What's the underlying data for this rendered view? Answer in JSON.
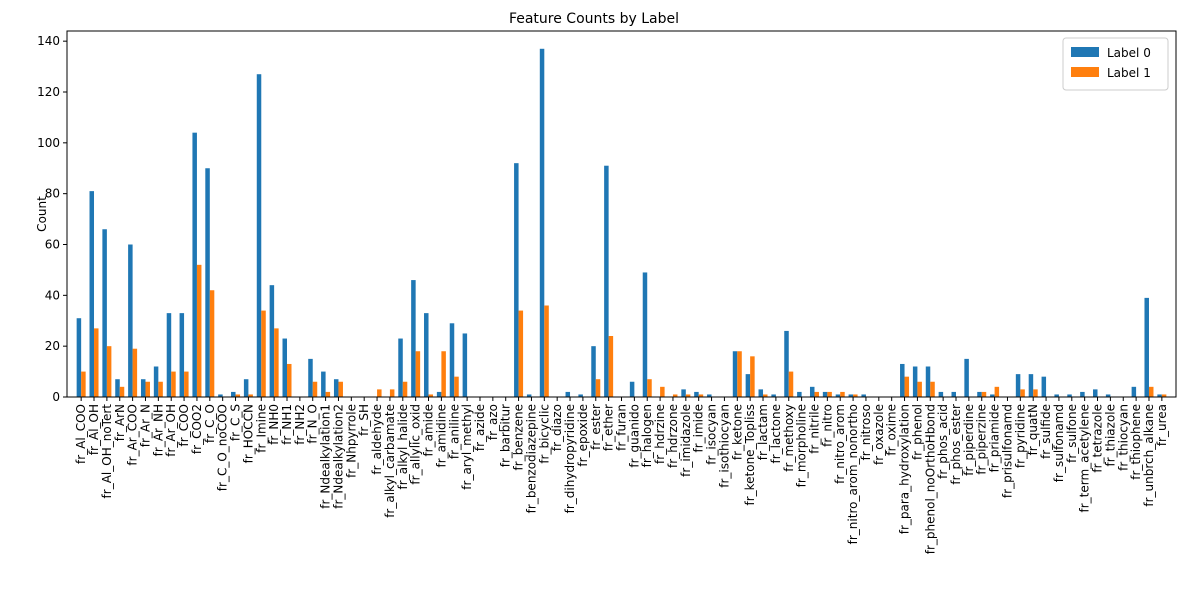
{
  "chart_data": {
    "type": "bar",
    "title": "Feature Counts by Label",
    "xlabel": "",
    "ylabel": "Count",
    "ylim": [
      0,
      144
    ],
    "yticks": [
      0,
      20,
      40,
      60,
      80,
      100,
      120,
      140
    ],
    "grid": false,
    "legend_position": "top-right",
    "categories": [
      "fr_Al_COO",
      "fr_Al_OH",
      "fr_Al_OH_noTert",
      "fr_ArN",
      "fr_Ar_COO",
      "fr_Ar_N",
      "fr_Ar_NH",
      "fr_Ar_OH",
      "fr_COO",
      "fr_COO2",
      "fr_C_O",
      "fr_C_O_noCOO",
      "fr_C_S",
      "fr_HOCCN",
      "fr_Imine",
      "fr_NH0",
      "fr_NH1",
      "fr_NH2",
      "fr_N_O",
      "fr_Ndealkylation1",
      "fr_Ndealkylation2",
      "fr_Nhpyrrole",
      "fr_SH",
      "fr_aldehyde",
      "fr_alkyl_carbamate",
      "fr_alkyl_halide",
      "fr_allylic_oxid",
      "fr_amide",
      "fr_amidine",
      "fr_aniline",
      "fr_aryl_methyl",
      "fr_azide",
      "fr_azo",
      "fr_barbitur",
      "fr_benzene",
      "fr_benzodiazepine",
      "fr_bicyclic",
      "fr_diazo",
      "fr_dihydropyridine",
      "fr_epoxide",
      "fr_ester",
      "fr_ether",
      "fr_furan",
      "fr_guanido",
      "fr_halogen",
      "fr_hdrzine",
      "fr_hdrzone",
      "fr_imidazole",
      "fr_imide",
      "fr_isocyan",
      "fr_isothiocyan",
      "fr_ketone",
      "fr_ketone_Topliss",
      "fr_lactam",
      "fr_lactone",
      "fr_methoxy",
      "fr_morpholine",
      "fr_nitrile",
      "fr_nitro",
      "fr_nitro_arom",
      "fr_nitro_arom_nonortho",
      "fr_nitroso",
      "fr_oxazole",
      "fr_oxime",
      "fr_para_hydroxylation",
      "fr_phenol",
      "fr_phenol_noOrthoHbond",
      "fr_phos_acid",
      "fr_phos_ester",
      "fr_piperdine",
      "fr_piperzine",
      "fr_priamide",
      "fr_prisulfonamd",
      "fr_pyridine",
      "fr_quatN",
      "fr_sulfide",
      "fr_sulfonamd",
      "fr_sulfone",
      "fr_term_acetylene",
      "fr_tetrazole",
      "fr_thiazole",
      "fr_thiocyan",
      "fr_thiophene",
      "fr_unbrch_alkane",
      "fr_urea"
    ],
    "series": [
      {
        "name": "Label 0",
        "color": "#1f77b4",
        "values": [
          31,
          81,
          66,
          7,
          60,
          7,
          12,
          33,
          33,
          104,
          90,
          1,
          2,
          7,
          127,
          44,
          23,
          0,
          15,
          10,
          7,
          0,
          0,
          0,
          0,
          23,
          46,
          33,
          2,
          29,
          25,
          0,
          0,
          0,
          92,
          1,
          137,
          0,
          2,
          1,
          20,
          91,
          0,
          6,
          49,
          0,
          0,
          3,
          2,
          1,
          0,
          18,
          9,
          3,
          1,
          26,
          2,
          4,
          2,
          1,
          1,
          1,
          0,
          0,
          13,
          12,
          12,
          2,
          2,
          15,
          2,
          1,
          0,
          9,
          9,
          8,
          1,
          1,
          2,
          3,
          1,
          0,
          4,
          39,
          1
        ]
      },
      {
        "name": "Label 1",
        "color": "#ff7f0e",
        "values": [
          10,
          27,
          20,
          4,
          19,
          6,
          6,
          10,
          10,
          52,
          42,
          0,
          1,
          1,
          34,
          27,
          13,
          0,
          6,
          2,
          6,
          0,
          0,
          3,
          3,
          6,
          18,
          1,
          18,
          8,
          0,
          0,
          0,
          0,
          34,
          0,
          36,
          0,
          0,
          0,
          7,
          24,
          0,
          0,
          7,
          4,
          1,
          1,
          1,
          0,
          0,
          18,
          16,
          1,
          0,
          10,
          0,
          2,
          2,
          2,
          1,
          0,
          0,
          0,
          8,
          6,
          6,
          0,
          0,
          0,
          2,
          4,
          0,
          3,
          3,
          0,
          0,
          0,
          0,
          0,
          0,
          0,
          0,
          4,
          1
        ]
      }
    ]
  }
}
